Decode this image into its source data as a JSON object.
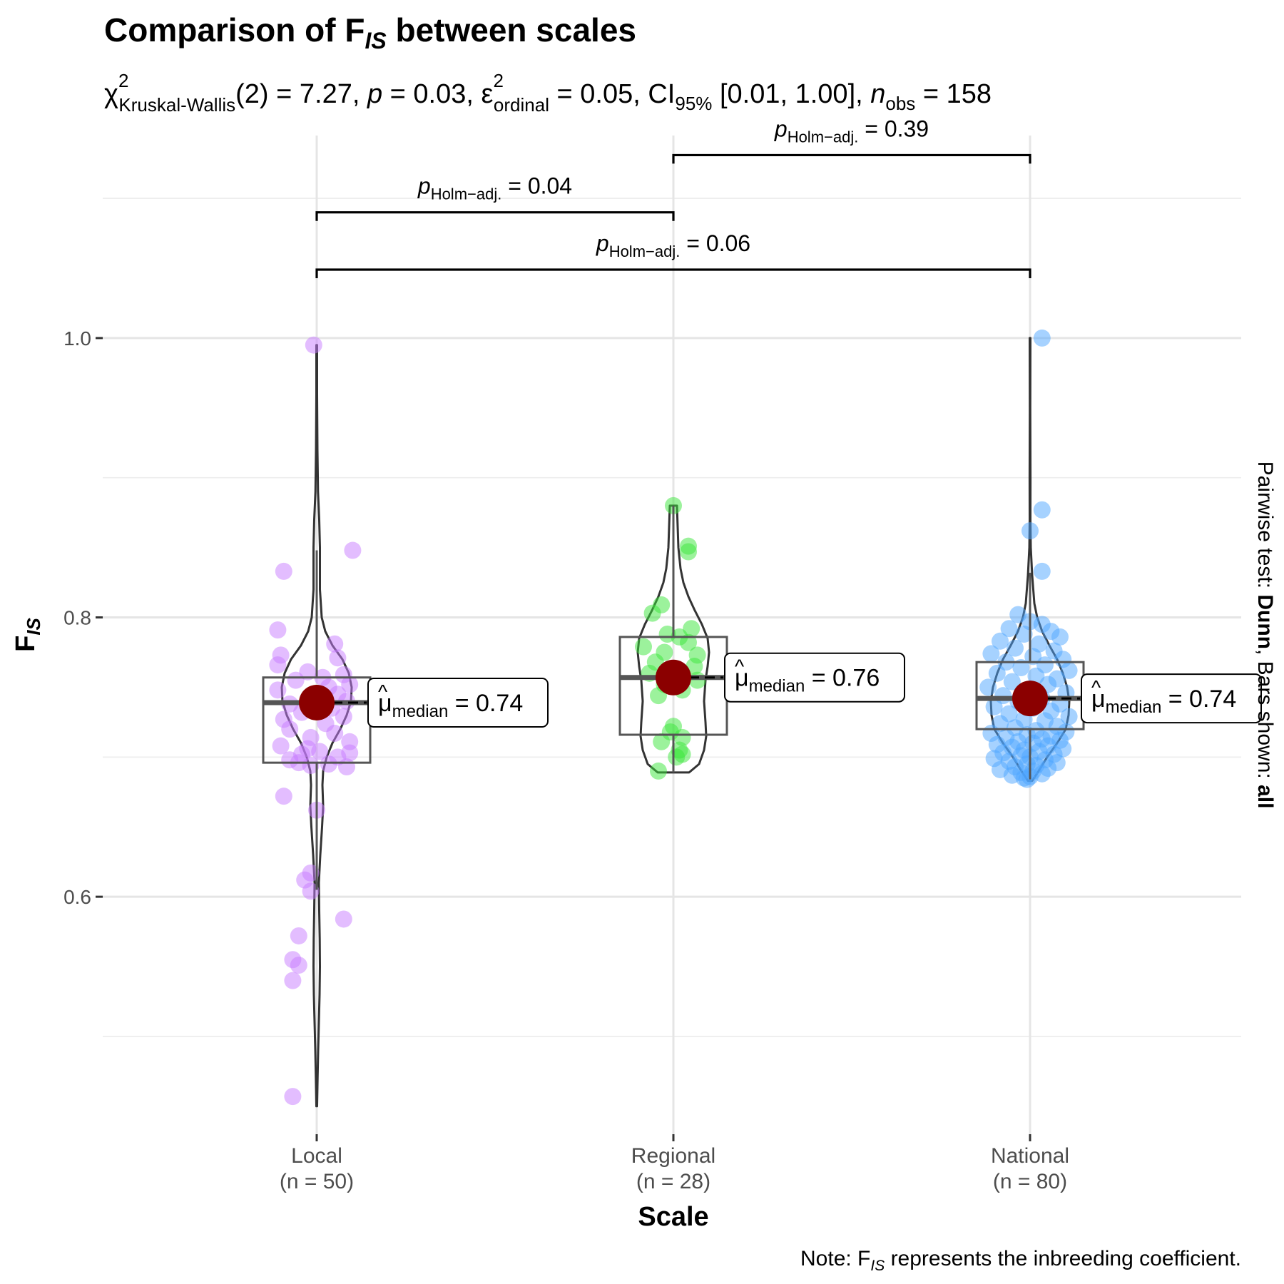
{
  "chart_data": {
    "type": "violin-box-scatter",
    "title": "Comparison of F_IS between scales",
    "title_parts": {
      "pre": "Comparison of F",
      "sub": "IS",
      "post": " between scales"
    },
    "subtitle": "χ²Kruskal-Wallis(2) = 7.27, p = 0.03, ε̂²ordinal = 0.05, CI95% [0.01, 1.00], nobs = 158",
    "subtitle_parts": {
      "chi": "χ",
      "chi_sup": "2",
      "chi_sub": "Kruskal-Wallis",
      "df": "(2) = 7.27, ",
      "p": "p",
      "p_val": " = 0.03, ",
      "eps": "ε",
      "eps_hat": "^",
      "eps_sup": "2",
      "eps_sub": "ordinal",
      "eps_val": " = 0.05, CI",
      "ci_sub": "95%",
      "ci_val": " [0.01, 1.00], ",
      "n": "n",
      "n_sub": "obs",
      "n_val": " = 158"
    },
    "xlabel": "Scale",
    "ylabel": {
      "main": "F",
      "sub": "IS"
    },
    "ylim": [
      0.43,
      1.145
    ],
    "y_ticks": [
      0.6,
      0.8,
      1.0
    ],
    "y_tick_labels": [
      "0.6",
      "0.8",
      "1.0"
    ],
    "y_minor_grid": [
      0.5,
      0.7,
      0.9,
      1.1
    ],
    "grid": true,
    "categories": [
      "Local",
      "Regional",
      "National"
    ],
    "category_counts": [
      "(n = 50)",
      "(n = 28)",
      "(n = 80)"
    ],
    "colors": {
      "Local": "#c77cff",
      "Regional": "#39e639",
      "National": "#4da6ff",
      "median_point": "#8b0000"
    },
    "groups": [
      {
        "name": "Local",
        "n": 50,
        "median": 0.74,
        "median_label": {
          "mu": "μ",
          "hat": "^",
          "sub": "median",
          "val": " = 0.74"
        },
        "box": {
          "q1": 0.696,
          "median": 0.739,
          "q3": 0.757,
          "whisker_low": 0.605,
          "whisker_high": 0.848
        },
        "violin": [
          [
            0.45,
            0.005
          ],
          [
            0.47,
            0.012
          ],
          [
            0.49,
            0.02
          ],
          [
            0.51,
            0.03
          ],
          [
            0.53,
            0.04
          ],
          [
            0.55,
            0.045
          ],
          [
            0.57,
            0.042
          ],
          [
            0.59,
            0.035
          ],
          [
            0.61,
            0.03
          ],
          [
            0.63,
            0.05
          ],
          [
            0.65,
            0.075
          ],
          [
            0.665,
            0.09
          ],
          [
            0.68,
            0.08
          ],
          [
            0.69,
            0.09
          ],
          [
            0.7,
            0.14
          ],
          [
            0.71,
            0.22
          ],
          [
            0.72,
            0.33
          ],
          [
            0.73,
            0.42
          ],
          [
            0.74,
            0.48
          ],
          [
            0.75,
            0.49
          ],
          [
            0.76,
            0.45
          ],
          [
            0.77,
            0.36
          ],
          [
            0.78,
            0.22
          ],
          [
            0.79,
            0.12
          ],
          [
            0.8,
            0.07
          ],
          [
            0.82,
            0.045
          ],
          [
            0.85,
            0.045
          ],
          [
            0.87,
            0.035
          ],
          [
            0.89,
            0.018
          ],
          [
            0.92,
            0.01
          ],
          [
            0.96,
            0.005
          ],
          [
            0.995,
            0.005
          ]
        ],
        "points": [
          [
            0.995,
            -0.01
          ],
          [
            0.848,
            0.12
          ],
          [
            0.833,
            -0.11
          ],
          [
            0.791,
            -0.13
          ],
          [
            0.781,
            0.06
          ],
          [
            0.773,
            -0.12
          ],
          [
            0.771,
            0.07
          ],
          [
            0.766,
            -0.13
          ],
          [
            0.761,
            -0.03
          ],
          [
            0.759,
            0.09
          ],
          [
            0.757,
            0.02
          ],
          [
            0.755,
            -0.07
          ],
          [
            0.752,
            0.11
          ],
          [
            0.75,
            0.04
          ],
          [
            0.748,
            -0.13
          ],
          [
            0.745,
            0.07
          ],
          [
            0.743,
            -0.02
          ],
          [
            0.74,
            0.1
          ],
          [
            0.738,
            -0.09
          ],
          [
            0.735,
            0.05
          ],
          [
            0.732,
            -0.05
          ],
          [
            0.729,
            0.09
          ],
          [
            0.727,
            -0.11
          ],
          [
            0.724,
            0.03
          ],
          [
            0.72,
            -0.09
          ],
          [
            0.717,
            0.06
          ],
          [
            0.714,
            -0.02
          ],
          [
            0.711,
            0.11
          ],
          [
            0.708,
            -0.12
          ],
          [
            0.706,
            -0.03
          ],
          [
            0.704,
            0.01
          ],
          [
            0.703,
            0.11
          ],
          [
            0.702,
            -0.05
          ],
          [
            0.7,
            0.07
          ],
          [
            0.698,
            -0.09
          ],
          [
            0.696,
            -0.06
          ],
          [
            0.695,
            0.04
          ],
          [
            0.694,
            -0.02
          ],
          [
            0.693,
            0.1
          ],
          [
            0.672,
            -0.11
          ],
          [
            0.662,
            0.0
          ],
          [
            0.617,
            -0.02
          ],
          [
            0.612,
            -0.04
          ],
          [
            0.604,
            -0.02
          ],
          [
            0.584,
            0.09
          ],
          [
            0.572,
            -0.06
          ],
          [
            0.555,
            -0.08
          ],
          [
            0.551,
            -0.06
          ],
          [
            0.54,
            -0.08
          ],
          [
            0.457,
            -0.08
          ]
        ]
      },
      {
        "name": "Regional",
        "n": 28,
        "median": 0.76,
        "median_label": {
          "mu": "μ",
          "hat": "^",
          "sub": "median",
          "val": " = 0.76"
        },
        "box": {
          "q1": 0.716,
          "median": 0.757,
          "q3": 0.786,
          "whisker_low": 0.689,
          "whisker_high": 0.88
        },
        "violin": [
          [
            0.689,
            0.22
          ],
          [
            0.695,
            0.36
          ],
          [
            0.705,
            0.43
          ],
          [
            0.715,
            0.46
          ],
          [
            0.725,
            0.45
          ],
          [
            0.74,
            0.43
          ],
          [
            0.755,
            0.45
          ],
          [
            0.765,
            0.48
          ],
          [
            0.775,
            0.5
          ],
          [
            0.785,
            0.48
          ],
          [
            0.795,
            0.4
          ],
          [
            0.805,
            0.3
          ],
          [
            0.815,
            0.21
          ],
          [
            0.825,
            0.14
          ],
          [
            0.835,
            0.1
          ],
          [
            0.85,
            0.07
          ],
          [
            0.865,
            0.06
          ],
          [
            0.88,
            0.05
          ]
        ],
        "points": [
          [
            0.88,
            0.0
          ],
          [
            0.851,
            0.05
          ],
          [
            0.847,
            0.05
          ],
          [
            0.809,
            -0.04
          ],
          [
            0.803,
            -0.07
          ],
          [
            0.792,
            0.06
          ],
          [
            0.788,
            -0.02
          ],
          [
            0.786,
            0.02
          ],
          [
            0.782,
            0.05
          ],
          [
            0.779,
            -0.1
          ],
          [
            0.775,
            -0.03
          ],
          [
            0.773,
            0.08
          ],
          [
            0.768,
            -0.06
          ],
          [
            0.765,
            0.07
          ],
          [
            0.763,
            0.0
          ],
          [
            0.76,
            -0.08
          ],
          [
            0.755,
            0.08
          ],
          [
            0.752,
            -0.03
          ],
          [
            0.748,
            0.03
          ],
          [
            0.744,
            -0.05
          ],
          [
            0.722,
            0.0
          ],
          [
            0.718,
            -0.01
          ],
          [
            0.714,
            0.03
          ],
          [
            0.711,
            -0.04
          ],
          [
            0.705,
            0.02
          ],
          [
            0.702,
            0.03
          ],
          [
            0.7,
            0.01
          ],
          [
            0.69,
            -0.05
          ]
        ]
      },
      {
        "name": "National",
        "n": 80,
        "median": 0.74,
        "median_label": {
          "mu": "μ",
          "hat": "^",
          "sub": "median",
          "val": " = 0.74"
        },
        "box": {
          "q1": 0.72,
          "median": 0.742,
          "q3": 0.768,
          "whisker_low": 0.684,
          "whisker_high": 0.832
        },
        "violin": [
          [
            0.683,
            0.03
          ],
          [
            0.69,
            0.12
          ],
          [
            0.7,
            0.24
          ],
          [
            0.71,
            0.38
          ],
          [
            0.72,
            0.5
          ],
          [
            0.73,
            0.54
          ],
          [
            0.74,
            0.55
          ],
          [
            0.75,
            0.52
          ],
          [
            0.76,
            0.46
          ],
          [
            0.77,
            0.38
          ],
          [
            0.78,
            0.27
          ],
          [
            0.79,
            0.17
          ],
          [
            0.8,
            0.1
          ],
          [
            0.81,
            0.06
          ],
          [
            0.83,
            0.03
          ],
          [
            0.85,
            0.01
          ],
          [
            0.87,
            0.005
          ],
          [
            0.9,
            0.006
          ],
          [
            0.95,
            0.003
          ],
          [
            1.0,
            0.005
          ]
        ],
        "points": [
          [
            1.0,
            0.04
          ],
          [
            0.877,
            0.04
          ],
          [
            0.862,
            0.0
          ],
          [
            0.833,
            0.04
          ],
          [
            0.802,
            -0.04
          ],
          [
            0.797,
            0.0
          ],
          [
            0.795,
            0.04
          ],
          [
            0.792,
            -0.07
          ],
          [
            0.79,
            0.07
          ],
          [
            0.788,
            -0.02
          ],
          [
            0.786,
            0.1
          ],
          [
            0.783,
            -0.1
          ],
          [
            0.781,
            0.03
          ],
          [
            0.778,
            -0.05
          ],
          [
            0.776,
            0.08
          ],
          [
            0.774,
            -0.13
          ],
          [
            0.772,
            0.01
          ],
          [
            0.77,
            0.11
          ],
          [
            0.768,
            -0.08
          ],
          [
            0.766,
            0.05
          ],
          [
            0.764,
            -0.03
          ],
          [
            0.762,
            0.13
          ],
          [
            0.76,
            -0.11
          ],
          [
            0.758,
            0.02
          ],
          [
            0.756,
            0.09
          ],
          [
            0.754,
            -0.06
          ],
          [
            0.752,
            0.06
          ],
          [
            0.75,
            -0.14
          ],
          [
            0.748,
            -0.01
          ],
          [
            0.746,
            0.12
          ],
          [
            0.744,
            -0.09
          ],
          [
            0.742,
            0.04
          ],
          [
            0.74,
            -0.04
          ],
          [
            0.738,
            0.1
          ],
          [
            0.736,
            -0.12
          ],
          [
            0.735,
            0.01
          ],
          [
            0.733,
            0.07
          ],
          [
            0.731,
            -0.07
          ],
          [
            0.729,
            0.13
          ],
          [
            0.727,
            -0.02
          ],
          [
            0.726,
            0.05
          ],
          [
            0.724,
            -0.1
          ],
          [
            0.722,
            0.09
          ],
          [
            0.721,
            -0.05
          ],
          [
            0.719,
            0.02
          ],
          [
            0.718,
            0.12
          ],
          [
            0.717,
            -0.13
          ],
          [
            0.716,
            -0.01
          ],
          [
            0.715,
            0.07
          ],
          [
            0.714,
            -0.08
          ],
          [
            0.713,
            0.04
          ],
          [
            0.712,
            0.1
          ],
          [
            0.711,
            -0.04
          ],
          [
            0.71,
            0.01
          ],
          [
            0.709,
            -0.11
          ],
          [
            0.708,
            0.06
          ],
          [
            0.707,
            -0.06
          ],
          [
            0.706,
            0.11
          ],
          [
            0.705,
            -0.02
          ],
          [
            0.704,
            0.03
          ],
          [
            0.703,
            -0.09
          ],
          [
            0.702,
            0.08
          ],
          [
            0.701,
            -0.03
          ],
          [
            0.7,
            0.0
          ],
          [
            0.699,
            -0.12
          ],
          [
            0.698,
            0.05
          ],
          [
            0.697,
            -0.07
          ],
          [
            0.696,
            0.09
          ],
          [
            0.695,
            -0.01
          ],
          [
            0.694,
            0.02
          ],
          [
            0.693,
            -0.05
          ],
          [
            0.692,
            0.06
          ],
          [
            0.691,
            -0.1
          ],
          [
            0.69,
            0.01
          ],
          [
            0.689,
            -0.03
          ],
          [
            0.688,
            0.04
          ],
          [
            0.687,
            -0.06
          ],
          [
            0.686,
            0.0
          ],
          [
            0.685,
            -0.02
          ],
          [
            0.684,
            -0.01
          ]
        ]
      }
    ],
    "comparisons": [
      {
        "from": "Regional",
        "to": "National",
        "y": 1.131,
        "label": {
          "p": "p",
          "sub": "Holm−adj.",
          "val": " = 0.39"
        }
      },
      {
        "from": "Local",
        "to": "Regional",
        "y": 1.09,
        "label": {
          "p": "p",
          "sub": "Holm−adj.",
          "val": " = 0.04"
        }
      },
      {
        "from": "Local",
        "to": "National",
        "y": 1.049,
        "label": {
          "p": "p",
          "sub": "Holm−adj.",
          "val": " = 0.06"
        }
      }
    ],
    "right_caption": {
      "pre": "Pairwise test: ",
      "test": "Dunn",
      "mid": ", Bars shown: ",
      "bars": "all"
    },
    "note": {
      "pre": "Note: F",
      "sub": "IS",
      "post": " represents the inbreeding coefficient."
    }
  }
}
